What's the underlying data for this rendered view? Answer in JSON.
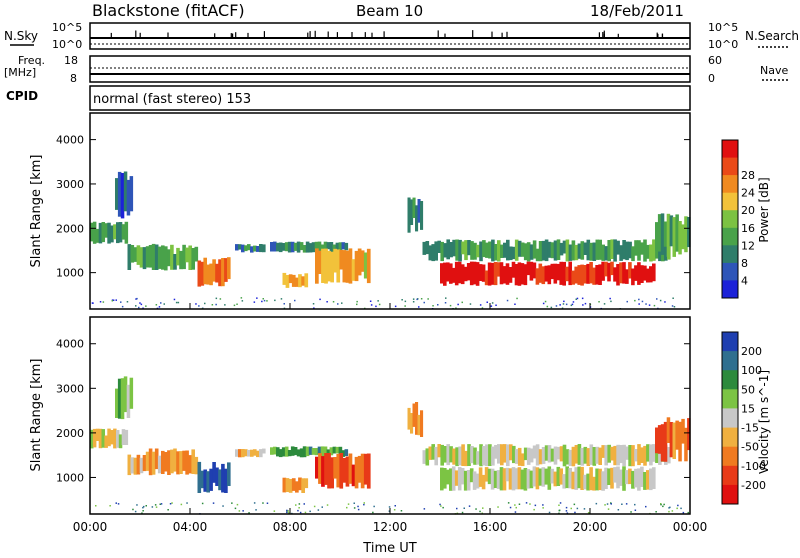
{
  "header": {
    "title": "Blackstone (fitACF)",
    "beam": "Beam 10",
    "date": "18/Feb/2011"
  },
  "status_panels": {
    "nsky_label": "N.Sky",
    "nsearch_label": "N.Search",
    "nsky_ticks": [
      "10^5",
      "10^0"
    ],
    "nsearch_ticks": [
      "10^5",
      "10^0"
    ],
    "freq_label": "Freq.",
    "freq_unit": "[MHz]",
    "freq_ticks": [
      "18",
      "8"
    ],
    "nave_label": "Nave",
    "nave_ticks": [
      "60",
      "0"
    ],
    "cpid_label": "CPID",
    "cpid_text": "normal (fast stereo) 153"
  },
  "chart_data": [
    {
      "type": "heatmap",
      "title": "",
      "xlabel": "",
      "ylabel": "Slant Range [km]",
      "xlim_hours": [
        0,
        24
      ],
      "ylim_km": [
        180,
        4600
      ],
      "yticks": [
        "1000",
        "2000",
        "3000",
        "4000"
      ],
      "colorbar": {
        "label": "Power [dB]",
        "ticks": [
          "4",
          "8",
          "12",
          "16",
          "20",
          "24",
          "28"
        ],
        "colors": [
          "#1c22d8",
          "#2e55b8",
          "#2f7d6a",
          "#49a24a",
          "#7cc242",
          "#f2c23a",
          "#f08a20",
          "#ea4a18",
          "#e01010"
        ]
      },
      "echo_regions": [
        {
          "t0": 0.0,
          "t1": 1.5,
          "range_km": [
            1650,
            2150
          ],
          "level": 0.35
        },
        {
          "t0": 1.0,
          "t1": 1.7,
          "range_km": [
            2200,
            3300
          ],
          "level": 0.2
        },
        {
          "t0": 1.5,
          "t1": 4.3,
          "range_km": [
            1050,
            1650
          ],
          "level": 0.4
        },
        {
          "t0": 4.3,
          "t1": 5.6,
          "range_km": [
            650,
            1350
          ],
          "level": 0.75
        },
        {
          "t0": 5.8,
          "t1": 7.0,
          "range_km": [
            1450,
            1650
          ],
          "level": 0.25
        },
        {
          "t0": 7.2,
          "t1": 10.3,
          "range_km": [
            1450,
            1700
          ],
          "level": 0.3
        },
        {
          "t0": 7.7,
          "t1": 8.7,
          "range_km": [
            650,
            1000
          ],
          "level": 0.7
        },
        {
          "t0": 9.0,
          "t1": 11.2,
          "range_km": [
            750,
            1550
          ],
          "level": 0.65
        },
        {
          "t0": 12.7,
          "t1": 13.3,
          "range_km": [
            1900,
            2700
          ],
          "level": 0.25
        },
        {
          "t0": 13.3,
          "t1": 23.2,
          "range_km": [
            1250,
            1750
          ],
          "level": 0.35
        },
        {
          "t0": 14.0,
          "t1": 22.6,
          "range_km": [
            700,
            1250
          ],
          "level": 0.95
        },
        {
          "t0": 22.6,
          "t1": 24.0,
          "range_km": [
            1350,
            2350
          ],
          "level": 0.4
        }
      ]
    },
    {
      "type": "heatmap",
      "title": "",
      "xlabel": "Time UT",
      "ylabel": "Slant Range [km]",
      "xlim_hours": [
        0,
        24
      ],
      "ylim_km": [
        180,
        4600
      ],
      "xticks": [
        "00:00",
        "04:00",
        "08:00",
        "12:00",
        "16:00",
        "20:00",
        "00:00"
      ],
      "yticks": [
        "1000",
        "2000",
        "3000",
        "4000"
      ],
      "colorbar": {
        "label": "Velocity [m s^-1]",
        "ticks": [
          "200",
          "100",
          "50",
          "15",
          "-15",
          "-50",
          "-100",
          "-200"
        ],
        "colors": [
          "#1f3fb0",
          "#2f6f8f",
          "#2c8a3c",
          "#7cc444",
          "#c8c8c8",
          "#f0b040",
          "#f07a20",
          "#e83a18",
          "#e01010"
        ]
      },
      "echo_regions": [
        {
          "t0": 0.0,
          "t1": 1.5,
          "range_km": [
            1650,
            2100
          ],
          "level": 0.5
        },
        {
          "t0": 1.0,
          "t1": 1.7,
          "range_km": [
            2200,
            3300
          ],
          "level": 0.4
        },
        {
          "t0": 1.5,
          "t1": 4.3,
          "range_km": [
            1050,
            1650
          ],
          "level": 0.65
        },
        {
          "t0": 4.3,
          "t1": 5.6,
          "range_km": [
            650,
            1350
          ],
          "level": 0.1
        },
        {
          "t0": 5.8,
          "t1": 7.0,
          "range_km": [
            1450,
            1650
          ],
          "level": 0.55
        },
        {
          "t0": 7.2,
          "t1": 10.3,
          "range_km": [
            1450,
            1700
          ],
          "level": 0.3
        },
        {
          "t0": 7.7,
          "t1": 8.7,
          "range_km": [
            650,
            1000
          ],
          "level": 0.75
        },
        {
          "t0": 9.0,
          "t1": 11.2,
          "range_km": [
            750,
            1550
          ],
          "level": 0.8
        },
        {
          "t0": 12.7,
          "t1": 13.3,
          "range_km": [
            1900,
            2700
          ],
          "level": 0.65
        },
        {
          "t0": 13.3,
          "t1": 23.2,
          "range_km": [
            1250,
            1750
          ],
          "level": 0.5
        },
        {
          "t0": 14.0,
          "t1": 22.6,
          "range_km": [
            700,
            1250
          ],
          "level": 0.5
        },
        {
          "t0": 22.6,
          "t1": 24.0,
          "range_km": [
            1350,
            2350
          ],
          "level": 0.75
        }
      ]
    }
  ]
}
